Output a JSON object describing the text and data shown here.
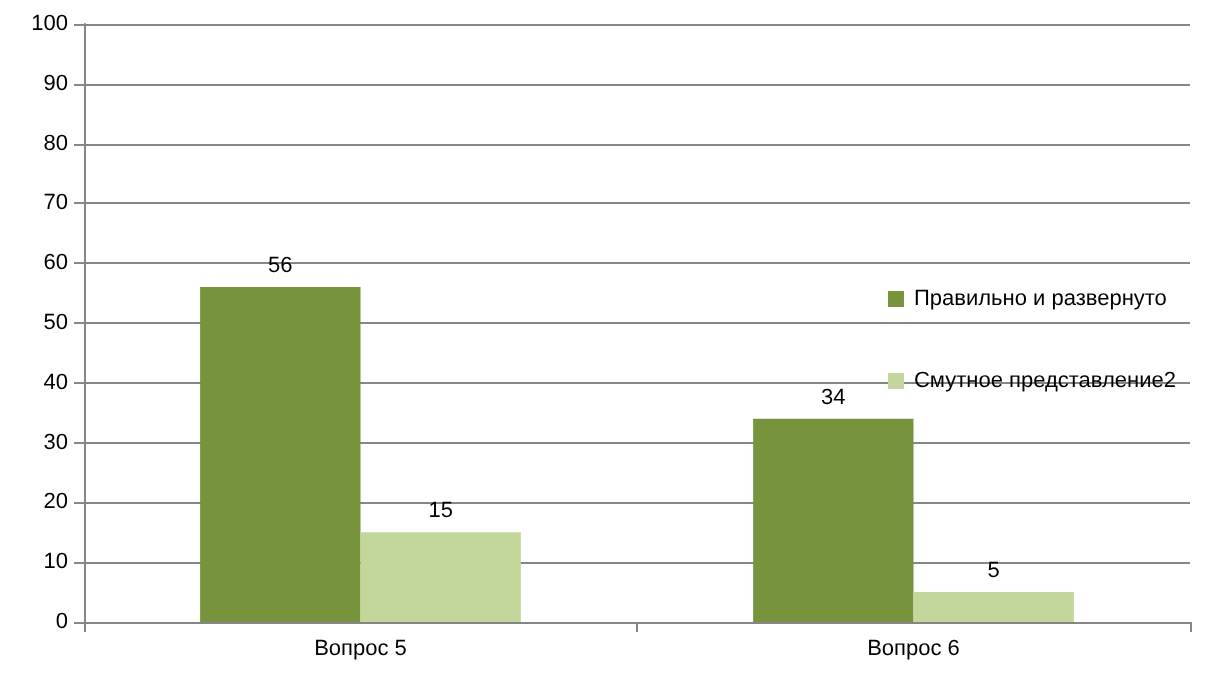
{
  "chart_data": {
    "type": "bar",
    "categories": [
      "Вопрос 5",
      "Вопрос 6"
    ],
    "series": [
      {
        "name": "Правильно и развернуто",
        "color": "#77933c",
        "values": [
          56,
          34
        ]
      },
      {
        "name": "Смутное представление2",
        "color": "#c3d69b",
        "values": [
          15,
          5
        ]
      }
    ],
    "ylim": [
      0,
      100
    ],
    "yticks": [
      0,
      10,
      20,
      30,
      40,
      50,
      60,
      70,
      80,
      90,
      100
    ],
    "grid": "y",
    "legend": "right",
    "data_labels": true
  }
}
